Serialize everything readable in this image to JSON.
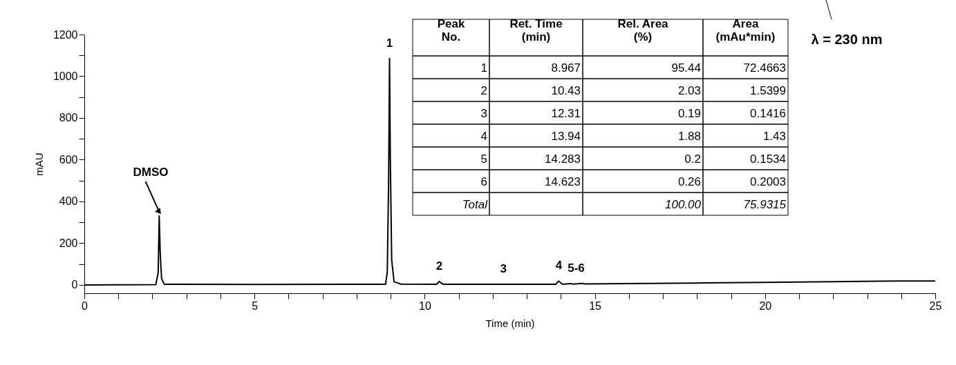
{
  "chart_data": {
    "type": "line",
    "xlabel": "Time (min)",
    "ylabel": "mAU",
    "xlim": [
      0,
      25
    ],
    "ylim": [
      -40,
      1200
    ],
    "xticks": [
      0,
      {
        "value": 1,
        "label": null
      },
      {
        "value": 2,
        "label": null
      },
      {
        "value": 3,
        "label": null
      },
      {
        "value": 4,
        "label": null
      },
      5,
      {
        "value": 6,
        "label": null
      },
      {
        "value": 7,
        "label": null
      },
      {
        "value": 8,
        "label": null
      },
      {
        "value": 9,
        "label": null
      },
      10,
      {
        "value": 11,
        "label": null
      },
      {
        "value": 12,
        "label": null
      },
      {
        "value": 13,
        "label": null
      },
      {
        "value": 14,
        "label": null
      },
      15,
      {
        "value": 16,
        "label": null
      },
      {
        "value": 17,
        "label": null
      },
      {
        "value": 18,
        "label": null
      },
      {
        "value": 19,
        "label": null
      },
      20,
      {
        "value": 21,
        "label": null
      },
      {
        "value": 22,
        "label": null
      },
      {
        "value": 23,
        "label": null
      },
      {
        "value": 24,
        "label": null
      },
      25
    ],
    "yticks": [
      0,
      {
        "value": 100,
        "label": null
      },
      200,
      {
        "value": 300,
        "label": null
      },
      400,
      {
        "value": 500,
        "label": null
      },
      600,
      {
        "value": 700,
        "label": null
      },
      800,
      {
        "value": 900,
        "label": null
      },
      1000,
      {
        "value": 1100,
        "label": null
      },
      1200
    ],
    "grid": false,
    "marker": "none",
    "line_style": "solid",
    "series": [
      {
        "color": "#000000",
        "x": [
          0,
          2.1,
          2.17,
          2.2,
          2.23,
          2.27,
          2.35,
          5,
          8.85,
          8.9,
          8.94,
          8.967,
          8.99,
          9.03,
          9.1,
          9.3,
          10.35,
          10.4,
          10.43,
          10.47,
          10.55,
          12.31,
          13.85,
          13.91,
          13.94,
          13.98,
          14.05,
          14.28,
          14.35,
          14.62,
          14.7,
          16,
          18,
          20,
          22,
          24,
          25
        ],
        "values": [
          0,
          1,
          60,
          330,
          150,
          30,
          3,
          2,
          3,
          60,
          500,
          1085,
          600,
          120,
          15,
          4,
          3,
          12,
          17,
          10,
          3,
          3,
          3,
          14,
          18,
          12,
          3,
          6,
          4,
          7,
          5,
          6,
          9,
          12,
          15,
          19,
          19
        ]
      }
    ],
    "annotations": [
      {
        "text": "DMSO",
        "x": 2.2,
        "y": 330
      },
      {
        "text": "1",
        "x": 8.967,
        "y": 1085
      },
      {
        "text": "2",
        "x": 10.43,
        "y": 17
      },
      {
        "text": "3",
        "x": 12.31,
        "y": 3
      },
      {
        "text": "4",
        "x": 13.94,
        "y": 18
      },
      {
        "text": "5-6",
        "x": 14.45,
        "y": 7
      },
      "λ = 230 nm",
      "Peak\nNo.",
      "Ret. Time\n(min)",
      "Rel. Area\n(%)",
      "Area\n(mAu*min)",
      "1",
      "8.967",
      "95.44",
      "72.4663",
      "2",
      "10.43",
      "2.03",
      "1.5399",
      "3",
      "12.31",
      "0.19",
      "0.1416",
      "4",
      "13.94",
      "1.88",
      "1.43",
      "5",
      "14.283",
      "0.2",
      "0.1534",
      "6",
      "14.623",
      "0.26",
      "0.2003",
      "Total",
      "100.00",
      "75.9315"
    ]
  }
}
